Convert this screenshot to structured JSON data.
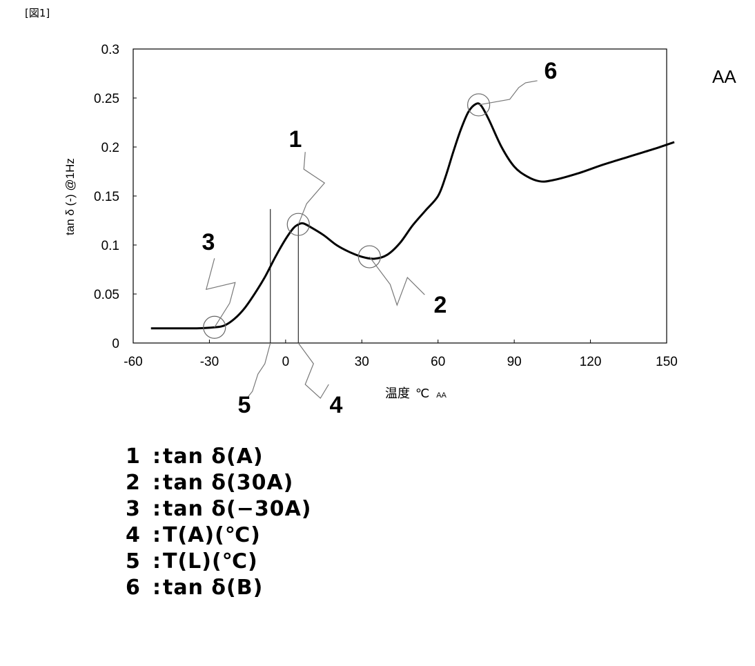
{
  "figure_label": "[図1]",
  "corner_note": "AA",
  "chart_data": {
    "type": "line",
    "ylabel": "tan δ (-) @1Hz",
    "xlabel": "温度",
    "xunit": "℃",
    "xnote": "AA",
    "xlim": [
      -60,
      150
    ],
    "ylim": [
      0,
      0.3
    ],
    "xticks": [
      "-60",
      "-30",
      "0",
      "30",
      "60",
      "90",
      "120",
      "150"
    ],
    "yticks": [
      "0",
      "0.05",
      "0.1",
      "0.15",
      "0.2",
      "0.25",
      "0.3"
    ],
    "grid": false,
    "series": [
      {
        "x": [
          -53,
          -45,
          -35,
          -28,
          -24,
          -20,
          -16,
          -12,
          -8,
          -4,
          0,
          3,
          5,
          7,
          10,
          15,
          20,
          25,
          30,
          35,
          40,
          45,
          50,
          55,
          60,
          63,
          66,
          69,
          72,
          75,
          77,
          80,
          85,
          90,
          95,
          100,
          105,
          115,
          125,
          135,
          145,
          153
        ],
        "y": [
          0.015,
          0.015,
          0.015,
          0.016,
          0.018,
          0.025,
          0.036,
          0.051,
          0.068,
          0.088,
          0.106,
          0.117,
          0.121,
          0.122,
          0.118,
          0.11,
          0.1,
          0.093,
          0.088,
          0.086,
          0.09,
          0.102,
          0.12,
          0.135,
          0.15,
          0.17,
          0.195,
          0.218,
          0.236,
          0.244,
          0.242,
          0.228,
          0.2,
          0.18,
          0.17,
          0.165,
          0.166,
          0.173,
          0.182,
          0.19,
          0.198,
          0.205
        ]
      }
    ],
    "markers": [
      {
        "label": "1",
        "x": 5,
        "y": 0.121
      },
      {
        "label": "2",
        "x": 33,
        "y": 0.088
      },
      {
        "label": "3",
        "x": -28,
        "y": 0.016
      },
      {
        "label": "6",
        "x": 76,
        "y": 0.243
      }
    ],
    "vlines": [
      {
        "label": "4",
        "x": 5,
        "y": 0.121
      },
      {
        "label": "5",
        "x": -6,
        "y": 0.105
      }
    ]
  },
  "legend": [
    {
      "num": "1",
      "sep": ":",
      "text": "tan δ(A)"
    },
    {
      "num": "2",
      "sep": ":",
      "text": "tan δ(30A)"
    },
    {
      "num": "3",
      "sep": ":",
      "text": "tan δ(−30A)"
    },
    {
      "num": "4",
      "sep": ":",
      "text": "T(A)(℃)"
    },
    {
      "num": "5",
      "sep": ":",
      "text": "T(L)(℃)"
    },
    {
      "num": "6",
      "sep": ":",
      "text": "tan δ(B)"
    }
  ]
}
